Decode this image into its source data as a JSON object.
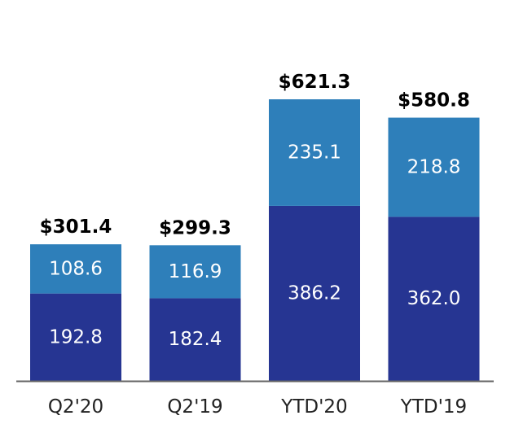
{
  "chart_data": {
    "type": "bar",
    "stacked": true,
    "title": "",
    "xlabel": "",
    "ylabel": "",
    "ylim": [
      0,
      680
    ],
    "grid": false,
    "legend": "none",
    "categories": [
      "Q2'20",
      "Q2'19",
      "YTD'20",
      "YTD'19"
    ],
    "series": [
      {
        "name": "bottom",
        "values": [
          192.8,
          182.4,
          386.2,
          362.0
        ],
        "labels": [
          "192.8",
          "182.4",
          "386.2",
          "362.0"
        ],
        "color": "#263592"
      },
      {
        "name": "top",
        "values": [
          108.6,
          116.9,
          235.1,
          218.8
        ],
        "labels": [
          "108.6",
          "116.9",
          "235.1",
          "218.8"
        ],
        "color": "#2e7fba"
      }
    ],
    "totals": [
      "$301.4",
      "$299.3",
      "$621.3",
      "$580.8"
    ],
    "axis_color": "#666666"
  }
}
